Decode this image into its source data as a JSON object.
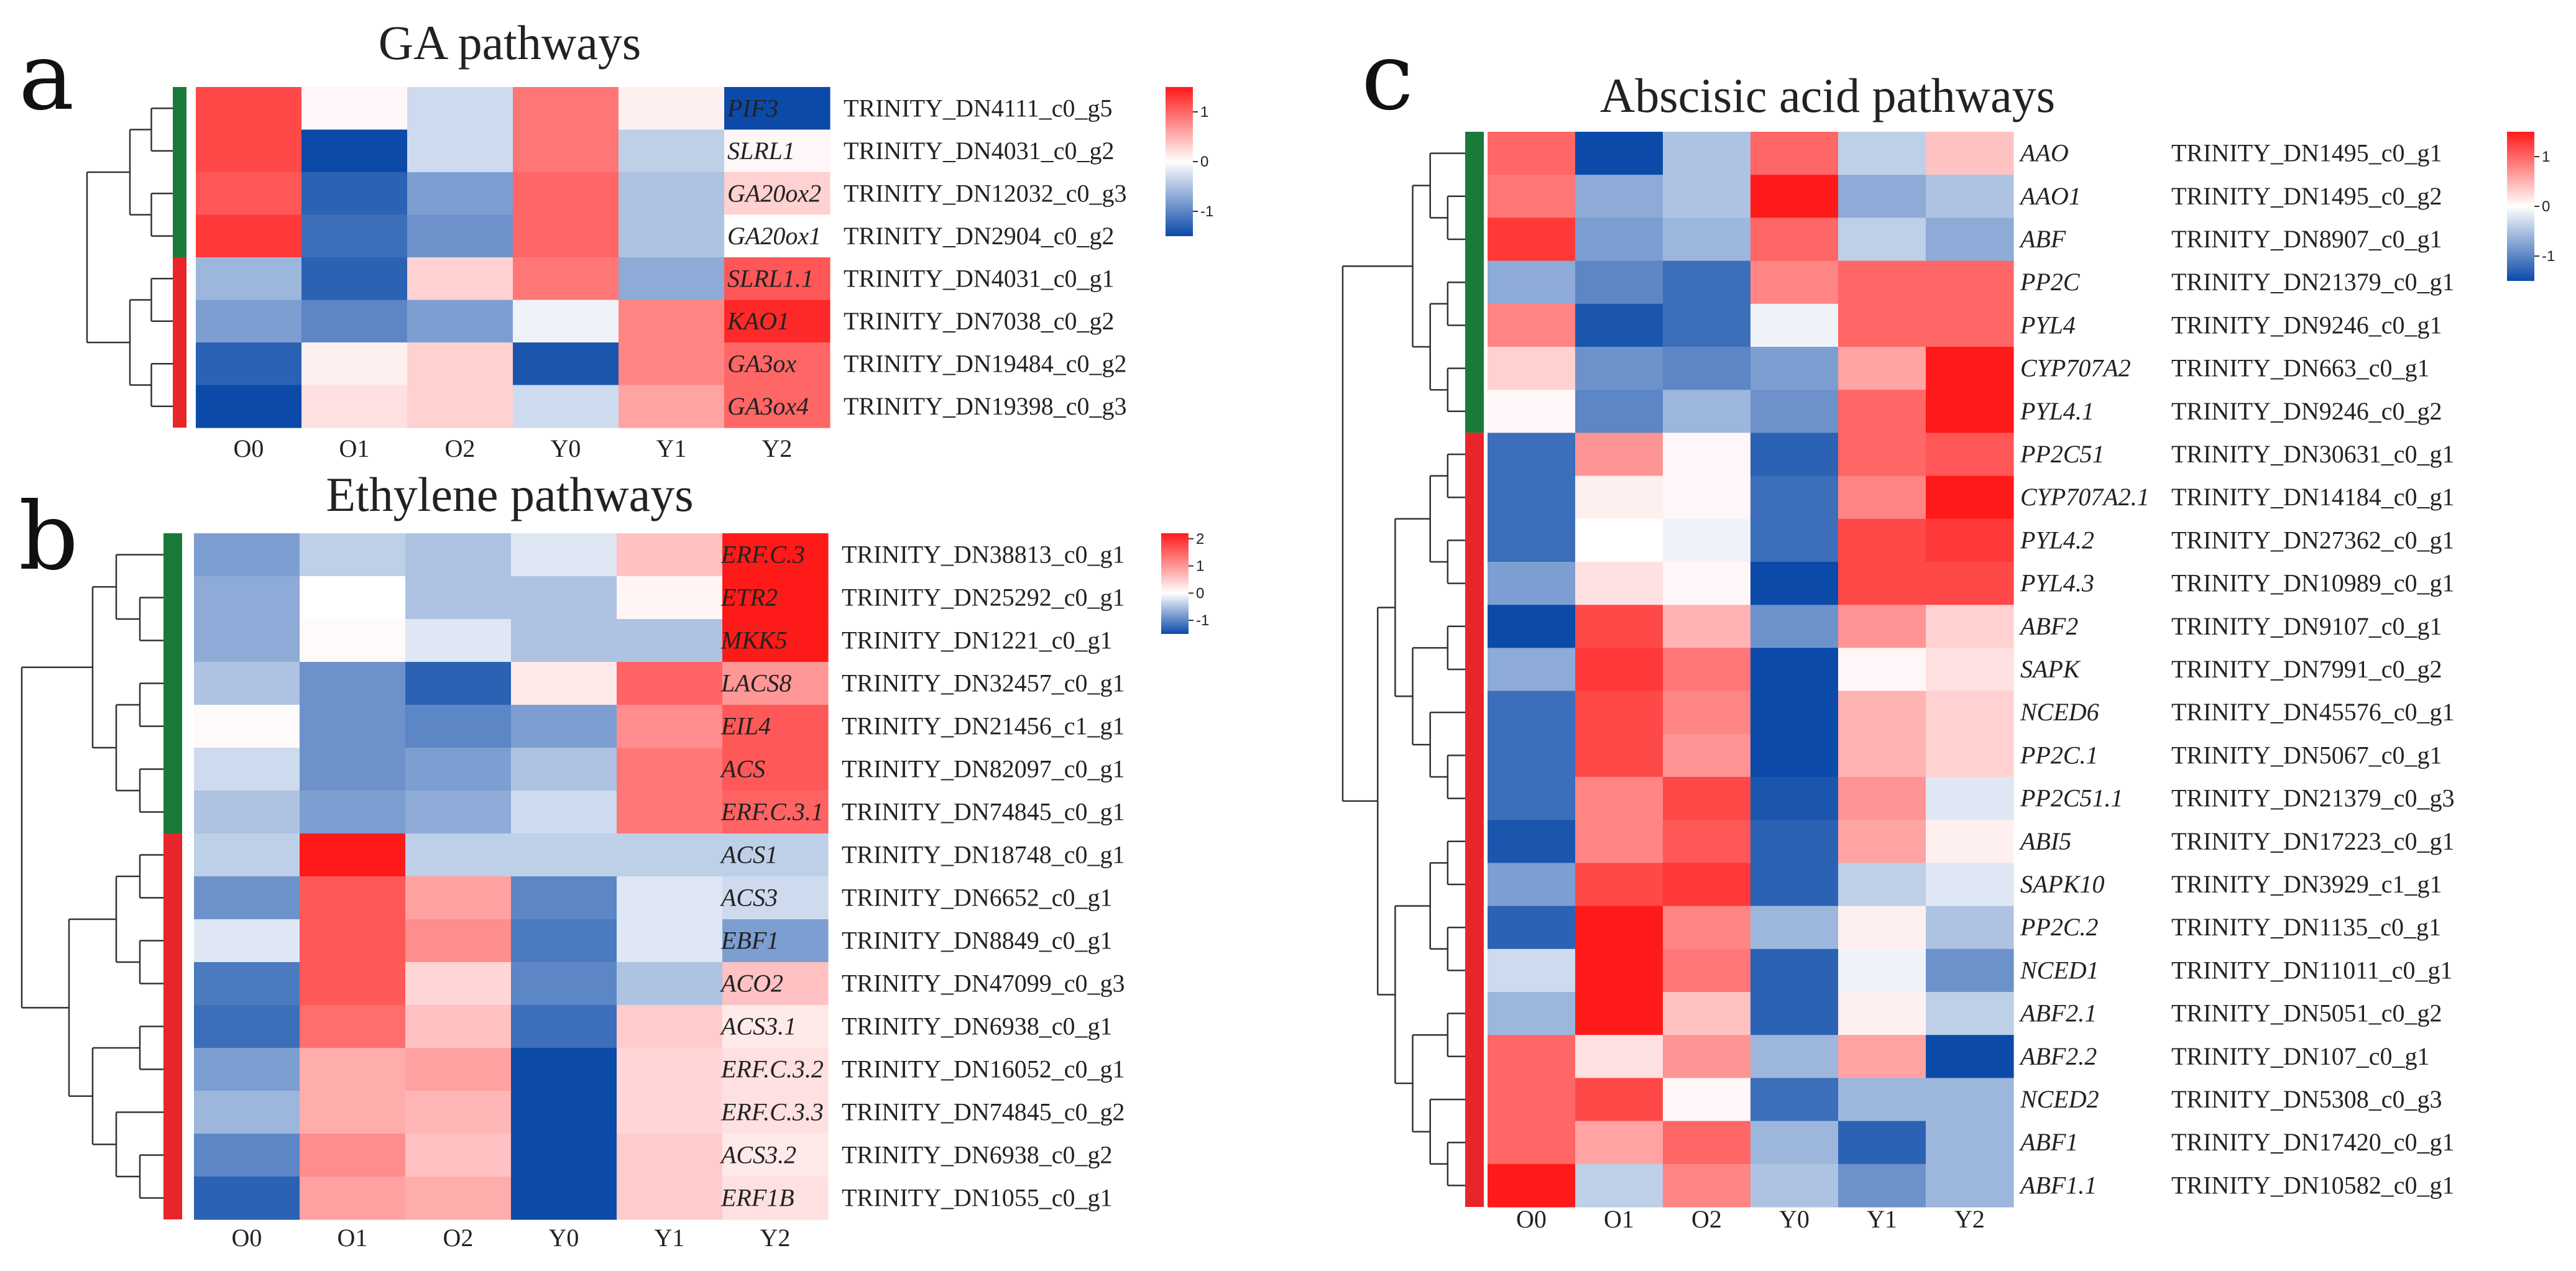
{
  "colors": {
    "low": "#0b4aa8",
    "mid": "#ffffff",
    "high": "#ff1a1a",
    "cluster_green": "#1a7a3a",
    "cluster_red": "#e8262a"
  },
  "chart_data": [
    {
      "type": "heatmap",
      "letter": "a",
      "title": "GA pathways",
      "columns": [
        "O0",
        "O1",
        "O2",
        "Y0",
        "Y1",
        "Y2"
      ],
      "legend": {
        "ticks": [
          "1",
          "0",
          "-1"
        ],
        "range": [
          -1.5,
          1.5
        ]
      },
      "clusters": [
        {
          "color": "green",
          "size": 4
        },
        {
          "color": "red",
          "size": 4
        }
      ],
      "rows": [
        {
          "gene": "PIF3",
          "id": "TRINITY_DN4111_c0_g5",
          "values": [
            1.2,
            0.05,
            -0.3,
            0.9,
            0.1,
            -1.5
          ]
        },
        {
          "gene": "SLRL1",
          "id": "TRINITY_DN4031_c0_g2",
          "values": [
            1.2,
            -1.5,
            -0.3,
            0.9,
            -0.4,
            0.05
          ]
        },
        {
          "gene": "GA20ox2",
          "id": "TRINITY_DN12032_c0_g3",
          "values": [
            1.1,
            -1.3,
            -0.8,
            1.0,
            -0.5,
            0.3
          ]
        },
        {
          "gene": "GA20ox1",
          "id": "TRINITY_DN2904_c0_g2",
          "values": [
            1.3,
            -1.2,
            -0.9,
            1.0,
            -0.5,
            0.0
          ]
        },
        {
          "gene": "SLRL1.1",
          "id": "TRINITY_DN4031_c0_g1",
          "values": [
            -0.6,
            -1.3,
            0.3,
            0.9,
            -0.7,
            1.1
          ]
        },
        {
          "gene": "KAO1",
          "id": "TRINITY_DN7038_c0_g2",
          "values": [
            -0.8,
            -1.0,
            -0.8,
            -0.1,
            0.8,
            1.4
          ]
        },
        {
          "gene": "GA3ox",
          "id": "TRINITY_DN19484_c0_g2",
          "values": [
            -1.3,
            0.1,
            0.3,
            -1.4,
            0.8,
            1.0
          ]
        },
        {
          "gene": "GA3ox4",
          "id": "TRINITY_DN19398_c0_g3",
          "values": [
            -1.5,
            0.2,
            0.3,
            -0.3,
            0.6,
            1.0
          ]
        }
      ]
    },
    {
      "type": "heatmap",
      "letter": "b",
      "title": "Ethylene pathways",
      "columns": [
        "O0",
        "O1",
        "O2",
        "Y0",
        "Y1",
        "Y2"
      ],
      "legend": {
        "ticks": [
          "2",
          "1",
          "0",
          "-1"
        ],
        "range": [
          -1.5,
          2.2
        ]
      },
      "clusters": [
        {
          "color": "green",
          "size": 7
        },
        {
          "color": "red",
          "size": 9
        }
      ],
      "rows": [
        {
          "gene": "ERF.C.3",
          "id": "TRINITY_DN38813_c0_g1",
          "values": [
            -0.8,
            -0.4,
            -0.5,
            -0.2,
            0.6,
            2.2
          ]
        },
        {
          "gene": "ETR2",
          "id": "TRINITY_DN25292_c0_g1",
          "values": [
            -0.7,
            0.0,
            -0.5,
            -0.5,
            0.1,
            2.2
          ]
        },
        {
          "gene": "MKK5",
          "id": "TRINITY_DN1221_c0_g1",
          "values": [
            -0.7,
            0.05,
            -0.2,
            -0.5,
            -0.5,
            2.2
          ]
        },
        {
          "gene": "LACS8",
          "id": "TRINITY_DN32457_c0_g1",
          "values": [
            -0.5,
            -0.9,
            -1.3,
            0.2,
            1.5,
            1.0
          ]
        },
        {
          "gene": "EIL4",
          "id": "TRINITY_DN21456_c1_g1",
          "values": [
            0.05,
            -0.9,
            -1.0,
            -0.8,
            1.1,
            1.6
          ]
        },
        {
          "gene": "ACS",
          "id": "TRINITY_DN82097_c0_g1",
          "values": [
            -0.3,
            -0.9,
            -0.8,
            -0.5,
            1.3,
            1.6
          ]
        },
        {
          "gene": "ERF.C.3.1",
          "id": "TRINITY_DN74845_c0_g1",
          "values": [
            -0.5,
            -0.8,
            -0.7,
            -0.3,
            1.3,
            1.5
          ]
        },
        {
          "gene": "ACS1",
          "id": "TRINITY_DN18748_c0_g1",
          "values": [
            -0.4,
            2.2,
            -0.4,
            -0.4,
            -0.4,
            -0.4
          ]
        },
        {
          "gene": "ACS3",
          "id": "TRINITY_DN6652_c0_g1",
          "values": [
            -0.9,
            1.6,
            0.9,
            -1.0,
            -0.2,
            -0.3
          ]
        },
        {
          "gene": "EBF1",
          "id": "TRINITY_DN8849_c0_g1",
          "values": [
            -0.2,
            1.6,
            1.1,
            -1.1,
            -0.2,
            -0.8
          ]
        },
        {
          "gene": "ACO2",
          "id": "TRINITY_DN47099_c0_g3",
          "values": [
            -1.1,
            1.6,
            0.4,
            -1.0,
            -0.5,
            0.6
          ]
        },
        {
          "gene": "ACS3.1",
          "id": "TRINITY_DN6938_c0_g1",
          "values": [
            -1.2,
            1.4,
            0.6,
            -1.2,
            0.5,
            0.2
          ]
        },
        {
          "gene": "ERF.C.3.2",
          "id": "TRINITY_DN16052_c0_g1",
          "values": [
            -0.8,
            0.8,
            0.9,
            -1.5,
            0.4,
            0.3
          ]
        },
        {
          "gene": "ERF.C.3.3",
          "id": "TRINITY_DN74845_c0_g2",
          "values": [
            -0.6,
            0.8,
            0.7,
            -1.5,
            0.4,
            0.3
          ]
        },
        {
          "gene": "ACS3.2",
          "id": "TRINITY_DN6938_c0_g2",
          "values": [
            -1.0,
            1.1,
            0.6,
            -1.5,
            0.5,
            0.2
          ]
        },
        {
          "gene": "ERF1B",
          "id": "TRINITY_DN1055_c0_g1",
          "values": [
            -1.3,
            0.9,
            0.8,
            -1.5,
            0.5,
            0.3
          ]
        }
      ]
    },
    {
      "type": "heatmap",
      "letter": "c",
      "title": "Abscisic acid pathways",
      "columns": [
        "O0",
        "O1",
        "O2",
        "Y0",
        "Y1",
        "Y2"
      ],
      "legend": {
        "ticks": [
          "1",
          "0",
          "-1"
        ],
        "range": [
          -1.5,
          1.5
        ]
      },
      "clusters": [
        {
          "color": "green",
          "size": 7
        },
        {
          "color": "red",
          "size": 18
        }
      ],
      "rows": [
        {
          "gene": "AAO",
          "id": "TRINITY_DN1495_c0_g1",
          "values": [
            1.0,
            -1.5,
            -0.5,
            1.0,
            -0.4,
            0.4
          ]
        },
        {
          "gene": "AAO1",
          "id": "TRINITY_DN1495_c0_g2",
          "values": [
            0.9,
            -0.7,
            -0.5,
            1.5,
            -0.7,
            -0.5
          ]
        },
        {
          "gene": "ABF",
          "id": "TRINITY_DN8907_c0_g1",
          "values": [
            1.3,
            -0.8,
            -0.6,
            1.0,
            -0.4,
            -0.7
          ]
        },
        {
          "gene": "PP2C",
          "id": "TRINITY_DN21379_c0_g1",
          "values": [
            -0.7,
            -1.0,
            -1.2,
            0.8,
            1.0,
            1.0
          ]
        },
        {
          "gene": "PYL4",
          "id": "TRINITY_DN9246_c0_g1",
          "values": [
            0.8,
            -1.4,
            -1.2,
            -0.1,
            1.0,
            1.0
          ]
        },
        {
          "gene": "CYP707A2",
          "id": "TRINITY_DN663_c0_g1",
          "values": [
            0.3,
            -0.9,
            -1.0,
            -0.8,
            0.6,
            1.5
          ]
        },
        {
          "gene": "PYL4.1",
          "id": "TRINITY_DN9246_c0_g2",
          "values": [
            0.05,
            -1.0,
            -0.6,
            -0.9,
            1.0,
            1.5
          ]
        },
        {
          "gene": "PP2C51",
          "id": "TRINITY_DN30631_c0_g1",
          "values": [
            -1.2,
            0.7,
            0.05,
            -1.3,
            1.0,
            1.1
          ]
        },
        {
          "gene": "CYP707A2.1",
          "id": "TRINITY_DN14184_c0_g1",
          "values": [
            -1.2,
            0.1,
            0.05,
            -1.2,
            0.8,
            1.5
          ]
        },
        {
          "gene": "PYL4.2",
          "id": "TRINITY_DN27362_c0_g1",
          "values": [
            -1.2,
            0.0,
            -0.1,
            -1.2,
            1.2,
            1.3
          ]
        },
        {
          "gene": "PYL4.3",
          "id": "TRINITY_DN10989_c0_g1",
          "values": [
            -0.8,
            0.2,
            0.05,
            -1.5,
            1.2,
            1.2
          ]
        },
        {
          "gene": "ABF2",
          "id": "TRINITY_DN9107_c0_g1",
          "values": [
            -1.5,
            1.2,
            0.5,
            -0.9,
            0.7,
            0.3
          ]
        },
        {
          "gene": "SAPK",
          "id": "TRINITY_DN7991_c0_g2",
          "values": [
            -0.7,
            1.3,
            0.9,
            -1.5,
            0.05,
            0.2
          ]
        },
        {
          "gene": "NCED6",
          "id": "TRINITY_DN45576_c0_g1",
          "values": [
            -1.2,
            1.2,
            0.8,
            -1.5,
            0.5,
            0.3
          ]
        },
        {
          "gene": "PP2C.1",
          "id": "TRINITY_DN5067_c0_g1",
          "values": [
            -1.2,
            1.2,
            0.7,
            -1.5,
            0.5,
            0.3
          ]
        },
        {
          "gene": "PP2C51.1",
          "id": "TRINITY_DN21379_c0_g3",
          "values": [
            -1.2,
            0.8,
            1.2,
            -1.4,
            0.7,
            -0.2
          ]
        },
        {
          "gene": "ABI5",
          "id": "TRINITY_DN17223_c0_g1",
          "values": [
            -1.4,
            0.8,
            1.1,
            -1.3,
            0.6,
            0.1
          ]
        },
        {
          "gene": "SAPK10",
          "id": "TRINITY_DN3929_c1_g1",
          "values": [
            -0.8,
            1.2,
            1.3,
            -1.3,
            -0.4,
            -0.2
          ]
        },
        {
          "gene": "PP2C.2",
          "id": "TRINITY_DN1135_c0_g1",
          "values": [
            -1.3,
            1.5,
            0.8,
            -0.6,
            0.1,
            -0.5
          ]
        },
        {
          "gene": "NCED1",
          "id": "TRINITY_DN11011_c0_g1",
          "values": [
            -0.3,
            1.5,
            0.9,
            -1.3,
            -0.1,
            -0.9
          ]
        },
        {
          "gene": "ABF2.1",
          "id": "TRINITY_DN5051_c0_g2",
          "values": [
            -0.6,
            1.5,
            0.4,
            -1.3,
            0.1,
            -0.4
          ]
        },
        {
          "gene": "ABF2.2",
          "id": "TRINITY_DN107_c0_g1",
          "values": [
            1.0,
            0.2,
            0.7,
            -0.6,
            0.6,
            -1.5
          ]
        },
        {
          "gene": "NCED2",
          "id": "TRINITY_DN5308_c0_g3",
          "values": [
            1.0,
            1.2,
            0.05,
            -1.2,
            -0.6,
            -0.6
          ]
        },
        {
          "gene": "ABF1",
          "id": "TRINITY_DN17420_c0_g1",
          "values": [
            1.0,
            0.6,
            1.0,
            -0.6,
            -1.3,
            -0.6
          ]
        },
        {
          "gene": "ABF1.1",
          "id": "TRINITY_DN10582_c0_g1",
          "values": [
            1.5,
            -0.4,
            0.8,
            -0.5,
            -0.9,
            -0.6
          ]
        }
      ]
    }
  ]
}
